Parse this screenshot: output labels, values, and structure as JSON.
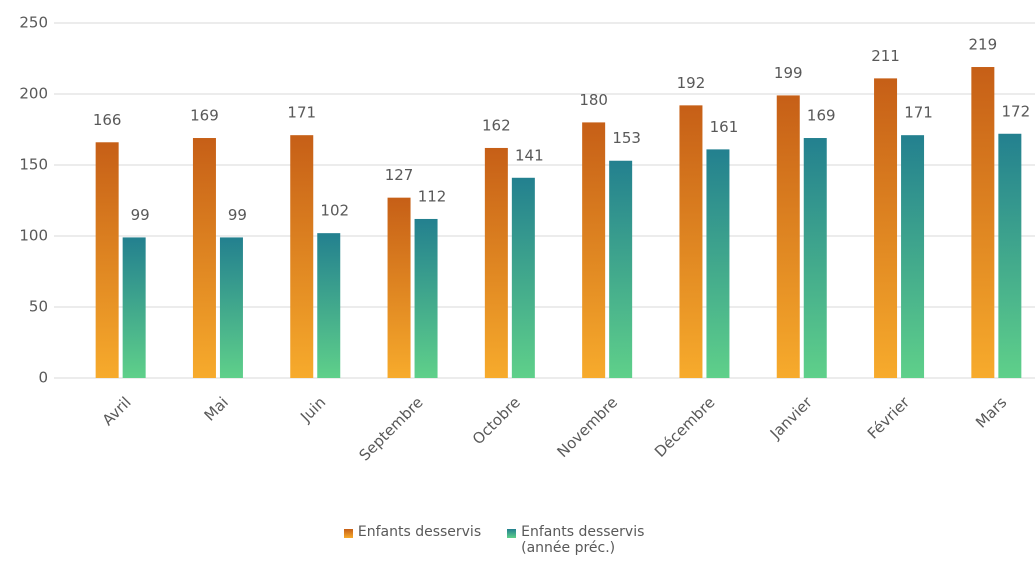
{
  "chart_data": {
    "type": "bar",
    "categories": [
      "Avril",
      "Mai",
      "Juin",
      "Septembre",
      "Octobre",
      "Novembre",
      "Décembre",
      "Janvier",
      "Février",
      "Mars"
    ],
    "series": [
      {
        "name": "Enfants desservis",
        "color": "#c65f17",
        "values": [
          166,
          169,
          171,
          127,
          162,
          180,
          192,
          199,
          211,
          219
        ]
      },
      {
        "name": "Enfants desservis (année préc.)",
        "color": "#23808f",
        "values": [
          99,
          99,
          102,
          112,
          141,
          153,
          161,
          169,
          171,
          172
        ]
      }
    ],
    "ylim": [
      0,
      250
    ],
    "yticks": [
      0,
      50,
      100,
      150,
      200,
      250
    ],
    "grid": true,
    "legend": "bottom"
  }
}
